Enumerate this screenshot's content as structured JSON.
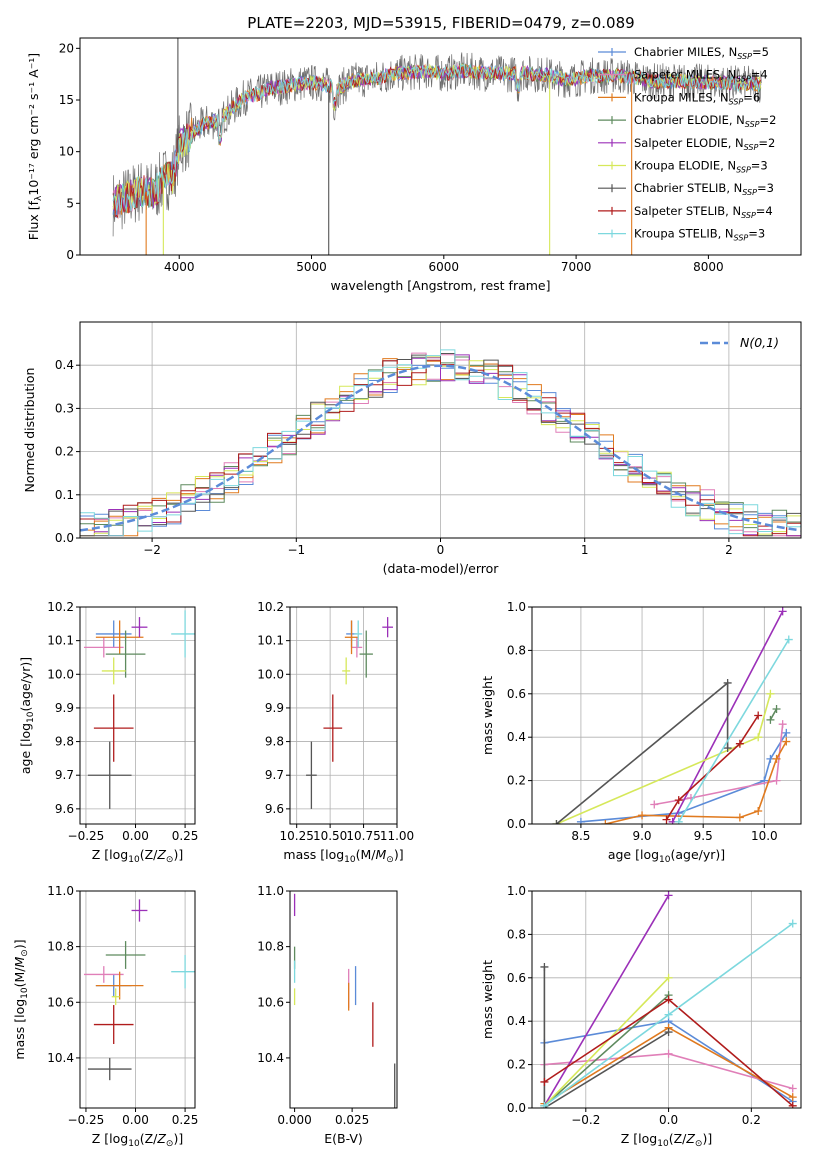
{
  "figure_title": "PLATE=2203, MJD=53915, FIBERID=0479, z=0.089",
  "colors": {
    "Chabrier MILES": "#5b8bd8",
    "Salpeter MILES": "#e07fb8",
    "Kroupa MILES": "#e07a1f",
    "Chabrier ELODIE": "#5e8a5e",
    "Salpeter ELODIE": "#9b30b8",
    "Kroupa ELODIE": "#d6e85a",
    "Chabrier STELIB": "#555555",
    "Salpeter STELIB": "#b01c1c",
    "Kroupa STELIB": "#7dd8de"
  },
  "chart_data": [
    {
      "id": "spectrum",
      "type": "line",
      "title": "",
      "xlabel": "wavelength [Angstrom, rest frame]",
      "ylabel": "Flux [fλ10⁻¹⁷ erg cm⁻² s⁻¹ A⁻¹]",
      "xlim": [
        3250,
        8700
      ],
      "ylim": [
        0,
        21
      ],
      "xticks": [
        4000,
        5000,
        6000,
        7000,
        8000
      ],
      "yticks": [
        0,
        5,
        10,
        15,
        20
      ],
      "grid": false,
      "legend_position": "right",
      "legend": [
        "Chabrier MILES, N_SSP=5",
        "Salpeter MILES, N_SSP=4",
        "Kroupa MILES, N_SSP=6",
        "Chabrier ELODIE, N_SSP=2",
        "Salpeter ELODIE, N_SSP=2",
        "Kroupa ELODIE, N_SSP=3",
        "Chabrier STELIB, N_SSP=3",
        "Salpeter STELIB, N_SSP=4",
        "Kroupa STELIB, N_SSP=3"
      ],
      "legend_text": [
        [
          "Chabrier MILES, N",
          "SSP",
          "=5"
        ],
        [
          "Salpeter MILES, N",
          "SSP",
          "=4"
        ],
        [
          "Kroupa MILES, N",
          "SSP",
          "=6"
        ],
        [
          "Chabrier ELODIE, N",
          "SSP",
          "=2"
        ],
        [
          "Salpeter ELODIE, N",
          "SSP",
          "=2"
        ],
        [
          "Kroupa ELODIE, N",
          "SSP",
          "=3"
        ],
        [
          "Chabrier STELIB, N",
          "SSP",
          "=3"
        ],
        [
          "Salpeter STELIB, N",
          "SSP",
          "=4"
        ],
        [
          "Kroupa STELIB, N",
          "SSP",
          "=3"
        ]
      ],
      "continuum": [
        [
          3500,
          5.0
        ],
        [
          3600,
          5.5
        ],
        [
          3700,
          6.2
        ],
        [
          3800,
          6.0
        ],
        [
          3900,
          7.5
        ],
        [
          3950,
          7.5
        ],
        [
          4000,
          10.5
        ],
        [
          4100,
          11.8
        ],
        [
          4200,
          12.8
        ],
        [
          4300,
          13.0
        ],
        [
          4400,
          14.2
        ],
        [
          4500,
          15.3
        ],
        [
          4600,
          15.6
        ],
        [
          4700,
          16.2
        ],
        [
          4800,
          16.3
        ],
        [
          4900,
          16.6
        ],
        [
          5000,
          16.7
        ],
        [
          5100,
          16.5
        ],
        [
          5200,
          16.0
        ],
        [
          5300,
          16.9
        ],
        [
          5400,
          17.0
        ],
        [
          5500,
          17.1
        ],
        [
          5600,
          17.5
        ],
        [
          5700,
          17.6
        ],
        [
          5800,
          17.7
        ],
        [
          5900,
          17.8
        ],
        [
          6000,
          17.5
        ],
        [
          6100,
          17.8
        ],
        [
          6200,
          17.8
        ],
        [
          6300,
          17.6
        ],
        [
          6400,
          17.6
        ],
        [
          6500,
          17.5
        ],
        [
          6600,
          17.6
        ],
        [
          6700,
          17.5
        ],
        [
          6800,
          17.4
        ],
        [
          6900,
          17.0
        ],
        [
          7000,
          17.0
        ],
        [
          7100,
          17.4
        ],
        [
          7200,
          17.3
        ],
        [
          7300,
          17.4
        ],
        [
          7400,
          17.2
        ],
        [
          7600,
          16.8
        ],
        [
          7800,
          16.8
        ],
        [
          8000,
          16.7
        ],
        [
          8200,
          16.6
        ],
        [
          8400,
          16.5
        ]
      ],
      "features": [
        {
          "x": 5130,
          "y": 0.0,
          "series": "Chabrier STELIB"
        },
        {
          "x": 6800,
          "y": 0.0,
          "series": "Kroupa ELODIE"
        },
        {
          "x": 7420,
          "y": 0.0,
          "series": "Kroupa MILES"
        },
        {
          "x": 3750,
          "y": 0.0,
          "series": "Kroupa MILES"
        },
        {
          "x": 3880,
          "y": 0.0,
          "series": "Kroupa ELODIE"
        },
        {
          "x": 3990,
          "y": 21.0,
          "series": "Chabrier STELIB"
        }
      ]
    },
    {
      "id": "residuals",
      "type": "histogram",
      "xlabel": "(data-model)/error",
      "ylabel": "Normed distribution",
      "xlim": [
        -2.5,
        2.5
      ],
      "ylim": [
        0,
        0.5
      ],
      "xticks": [
        -2,
        -1,
        0,
        1,
        2
      ],
      "yticks": [
        0.0,
        0.1,
        0.2,
        0.3,
        0.4
      ],
      "grid": true,
      "legend_position": "top-right",
      "legend": [
        "N(0,1)"
      ],
      "bin_width": 0.1,
      "reference": {
        "name": "N(0,1)",
        "mean": 0,
        "sigma": 1
      }
    },
    {
      "id": "age-vs-Z",
      "type": "errorbar",
      "xlabel": "Z [log10(Z/Z⊙)]",
      "ylabel": "age  [log10(age/yr)]",
      "xlim": [
        -0.28,
        0.3
      ],
      "ylim": [
        9.555,
        10.2
      ],
      "xticks": [
        -0.25,
        0.0,
        0.25
      ],
      "yticks": [
        9.6,
        9.7,
        9.8,
        9.9,
        10.0,
        10.1,
        10.2
      ],
      "grid": true,
      "points": [
        {
          "series": "Chabrier MILES",
          "x": -0.11,
          "y": 10.12,
          "xerr": 0.09,
          "yerr": 0.04
        },
        {
          "series": "Salpeter MILES",
          "x": -0.16,
          "y": 10.08,
          "xerr": 0.1,
          "yerr": 0.03
        },
        {
          "series": "Kroupa MILES",
          "x": -0.08,
          "y": 10.11,
          "xerr": 0.12,
          "yerr": 0.05
        },
        {
          "series": "Chabrier ELODIE",
          "x": -0.05,
          "y": 10.06,
          "xerr": 0.1,
          "yerr": 0.07
        },
        {
          "series": "Salpeter ELODIE",
          "x": 0.02,
          "y": 10.14,
          "xerr": 0.04,
          "yerr": 0.03
        },
        {
          "series": "Kroupa ELODIE",
          "x": -0.11,
          "y": 10.01,
          "xerr": 0.06,
          "yerr": 0.04
        },
        {
          "series": "Chabrier STELIB",
          "x": -0.13,
          "y": 9.7,
          "xerr": 0.11,
          "yerr": 0.1
        },
        {
          "series": "Salpeter STELIB",
          "x": -0.11,
          "y": 9.84,
          "xerr": 0.1,
          "yerr": 0.1
        },
        {
          "series": "Kroupa STELIB",
          "x": 0.25,
          "y": 10.12,
          "xerr": 0.07,
          "yerr": 0.07
        }
      ]
    },
    {
      "id": "age-vs-mass",
      "type": "errorbar",
      "xlabel": "mass [log10(M/M⊙)]",
      "ylabel": "",
      "xlim": [
        10.2,
        11.0
      ],
      "ylim": [
        9.555,
        10.2
      ],
      "xticks": [
        10.25,
        10.5,
        10.75,
        11.0
      ],
      "yticks": [
        9.6,
        9.7,
        9.8,
        9.9,
        10.0,
        10.1,
        10.2
      ],
      "grid": true,
      "points": [
        {
          "series": "Chabrier MILES",
          "x": 10.66,
          "y": 10.12,
          "xerr": 0.04,
          "yerr": 0.04
        },
        {
          "series": "Salpeter MILES",
          "x": 10.7,
          "y": 10.08,
          "xerr": 0.04,
          "yerr": 0.03
        },
        {
          "series": "Kroupa MILES",
          "x": 10.66,
          "y": 10.11,
          "xerr": 0.05,
          "yerr": 0.05
        },
        {
          "series": "Chabrier ELODIE",
          "x": 10.77,
          "y": 10.06,
          "xerr": 0.05,
          "yerr": 0.07
        },
        {
          "series": "Salpeter ELODIE",
          "x": 10.93,
          "y": 10.14,
          "xerr": 0.04,
          "yerr": 0.03
        },
        {
          "series": "Kroupa ELODIE",
          "x": 10.62,
          "y": 10.01,
          "xerr": 0.03,
          "yerr": 0.04
        },
        {
          "series": "Chabrier STELIB",
          "x": 10.36,
          "y": 9.7,
          "xerr": 0.04,
          "yerr": 0.1
        },
        {
          "series": "Salpeter STELIB",
          "x": 10.52,
          "y": 9.84,
          "xerr": 0.07,
          "yerr": 0.1
        },
        {
          "series": "Kroupa STELIB",
          "x": 10.71,
          "y": 10.12,
          "xerr": 0.03,
          "yerr": 0.04
        }
      ]
    },
    {
      "id": "massweight-vs-age",
      "type": "line",
      "xlabel": "age  [log10(age/yr)]",
      "ylabel": "mass weight",
      "xlim": [
        8.1,
        10.3
      ],
      "ylim": [
        0,
        1.0
      ],
      "xticks": [
        8.5,
        9.0,
        9.5,
        10.0
      ],
      "yticks": [
        0.0,
        0.2,
        0.4,
        0.6,
        0.8,
        1.0
      ],
      "grid": true,
      "series": [
        {
          "name": "Chabrier MILES",
          "x": [
            8.5,
            9.3,
            10.0,
            10.05,
            10.18
          ],
          "y": [
            0.01,
            0.05,
            0.2,
            0.3,
            0.42
          ]
        },
        {
          "name": "Salpeter MILES",
          "x": [
            9.1,
            9.4,
            10.1,
            10.15
          ],
          "y": [
            0.09,
            0.12,
            0.2,
            0.46
          ]
        },
        {
          "name": "Kroupa MILES",
          "x": [
            8.7,
            9.0,
            9.8,
            9.95,
            10.1,
            10.18
          ],
          "y": [
            0.0,
            0.04,
            0.03,
            0.06,
            0.3,
            0.38
          ]
        },
        {
          "name": "Chabrier ELODIE",
          "x": [
            10.05,
            10.1
          ],
          "y": [
            0.48,
            0.53
          ]
        },
        {
          "name": "Salpeter ELODIE",
          "x": [
            9.25,
            10.15
          ],
          "y": [
            0.01,
            0.98
          ]
        },
        {
          "name": "Kroupa ELODIE",
          "x": [
            8.3,
            9.95,
            10.05
          ],
          "y": [
            0.0,
            0.4,
            0.6
          ]
        },
        {
          "name": "Chabrier STELIB",
          "x": [
            8.3,
            9.7,
            9.7
          ],
          "y": [
            0.0,
            0.65,
            0.35
          ]
        },
        {
          "name": "Salpeter STELIB",
          "x": [
            9.2,
            9.3,
            9.8,
            9.95
          ],
          "y": [
            0.02,
            0.11,
            0.37,
            0.5
          ]
        },
        {
          "name": "Kroupa STELIB",
          "x": [
            9.3,
            10.2
          ],
          "y": [
            0.01,
            0.85
          ]
        }
      ]
    },
    {
      "id": "mass-vs-Z",
      "type": "errorbar",
      "xlabel": "Z [log10(Z/Z⊙)]",
      "ylabel": "mass [log10(M/M⊙)]",
      "xlim": [
        -0.28,
        0.3
      ],
      "ylim": [
        10.22,
        11.0
      ],
      "xticks": [
        -0.25,
        0.0,
        0.25
      ],
      "yticks": [
        10.4,
        10.6,
        10.8,
        11.0
      ],
      "grid": true,
      "points": [
        {
          "series": "Chabrier MILES",
          "x": -0.11,
          "y": 10.66,
          "xerr": 0.09,
          "yerr": 0.04
        },
        {
          "series": "Salpeter MILES",
          "x": -0.16,
          "y": 10.7,
          "xerr": 0.1,
          "yerr": 0.03
        },
        {
          "series": "Kroupa MILES",
          "x": -0.08,
          "y": 10.66,
          "xerr": 0.12,
          "yerr": 0.05
        },
        {
          "series": "Chabrier ELODIE",
          "x": -0.05,
          "y": 10.77,
          "xerr": 0.1,
          "yerr": 0.05
        },
        {
          "series": "Salpeter ELODIE",
          "x": 0.02,
          "y": 10.93,
          "xerr": 0.04,
          "yerr": 0.04
        },
        {
          "series": "Kroupa ELODIE",
          "x": -0.1,
          "y": 10.62,
          "xerr": 0.02,
          "yerr": 0.03
        },
        {
          "series": "Chabrier STELIB",
          "x": -0.13,
          "y": 10.36,
          "xerr": 0.11,
          "yerr": 0.04
        },
        {
          "series": "Salpeter STELIB",
          "x": -0.11,
          "y": 10.52,
          "xerr": 0.1,
          "yerr": 0.07
        },
        {
          "series": "Kroupa STELIB",
          "x": 0.25,
          "y": 10.71,
          "xerr": 0.07,
          "yerr": 0.06
        }
      ]
    },
    {
      "id": "mass-vs-ebv",
      "type": "errorbar",
      "xlabel": "E(B-V)",
      "ylabel": "",
      "xlim": [
        -0.002,
        0.0445
      ],
      "ylim": [
        10.22,
        11.0
      ],
      "xticks": [
        0.0,
        0.025
      ],
      "yticks": [
        10.4,
        10.6,
        10.8,
        11.0
      ],
      "grid": false,
      "points": [
        {
          "series": "Chabrier MILES",
          "x": 0.0265,
          "y": 10.66,
          "xerr": 0,
          "yerr": 0.07
        },
        {
          "series": "Salpeter MILES",
          "x": 0.0235,
          "y": 10.65,
          "xerr": 0,
          "yerr": 0.07
        },
        {
          "series": "Kroupa MILES",
          "x": 0.0235,
          "y": 10.62,
          "xerr": 0,
          "yerr": 0.05
        },
        {
          "series": "Chabrier ELODIE",
          "x": 0.0,
          "y": 10.76,
          "xerr": 0,
          "yerr": 0.04
        },
        {
          "series": "Salpeter ELODIE",
          "x": 0.0,
          "y": 10.95,
          "xerr": 0,
          "yerr": 0.04
        },
        {
          "series": "Kroupa ELODIE",
          "x": 0.0,
          "y": 10.62,
          "xerr": 0,
          "yerr": 0.03
        },
        {
          "series": "Chabrier STELIB",
          "x": 0.0435,
          "y": 10.3,
          "xerr": 0,
          "yerr": 0.08
        },
        {
          "series": "Salpeter STELIB",
          "x": 0.034,
          "y": 10.52,
          "xerr": 0,
          "yerr": 0.08
        },
        {
          "series": "Kroupa STELIB",
          "x": 0.0,
          "y": 10.71,
          "xerr": 0,
          "yerr": 0.04
        }
      ]
    },
    {
      "id": "massweight-vs-Z",
      "type": "line",
      "xlabel": "Z [log10(Z/Z⊙)]",
      "ylabel": "mass weight",
      "xlim": [
        -0.33,
        0.32
      ],
      "ylim": [
        0,
        1.0
      ],
      "xticks": [
        -0.2,
        0.0,
        0.2
      ],
      "yticks": [
        0.0,
        0.2,
        0.4,
        0.6,
        0.8,
        1.0
      ],
      "grid": true,
      "series": [
        {
          "name": "Chabrier MILES",
          "x": [
            -0.3,
            0.0,
            0.3
          ],
          "y": [
            0.3,
            0.4,
            0.03
          ]
        },
        {
          "name": "Salpeter MILES",
          "x": [
            -0.3,
            0.0,
            0.3
          ],
          "y": [
            0.2,
            0.25,
            0.09
          ]
        },
        {
          "name": "Kroupa MILES",
          "x": [
            -0.3,
            0.0,
            0.3
          ],
          "y": [
            0.02,
            0.37,
            0.05
          ]
        },
        {
          "name": "Chabrier ELODIE",
          "x": [
            -0.3,
            0.0
          ],
          "y": [
            0.01,
            0.52
          ]
        },
        {
          "name": "Salpeter ELODIE",
          "x": [
            -0.3,
            0.0
          ],
          "y": [
            0.01,
            0.98
          ]
        },
        {
          "name": "Kroupa ELODIE",
          "x": [
            -0.3,
            0.0
          ],
          "y": [
            0.01,
            0.6
          ]
        },
        {
          "name": "Chabrier STELIB",
          "x": [
            -0.3,
            -0.3,
            0.0
          ],
          "y": [
            0.65,
            0.0,
            0.35
          ]
        },
        {
          "name": "Salpeter STELIB",
          "x": [
            -0.3,
            0.0,
            0.3
          ],
          "y": [
            0.12,
            0.5,
            0.01
          ]
        },
        {
          "name": "Kroupa STELIB",
          "x": [
            -0.3,
            0.0,
            0.3
          ],
          "y": [
            0.01,
            0.43,
            0.85
          ]
        }
      ]
    }
  ]
}
